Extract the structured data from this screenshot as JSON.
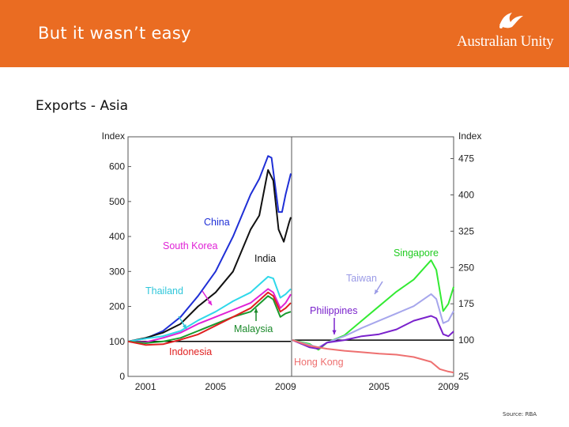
{
  "slide": {
    "title": "But it wasn’t easy",
    "subtitle": "Exports - Asia",
    "source": "Source: RBA",
    "logo_text": "Australian Unity",
    "brand_color": "#ea6c22"
  },
  "chart_data": [
    {
      "type": "line",
      "panel": "left",
      "axis_label": "Index",
      "yticks": [
        0,
        100,
        200,
        300,
        400,
        500,
        600
      ],
      "ylim": [
        0,
        685
      ],
      "xlim": [
        2000.0,
        2009.3
      ],
      "xticks": [
        2001,
        2005,
        2009
      ],
      "reference_line": 100,
      "grid": false,
      "series": [
        {
          "name": "China",
          "color": "#1f2fd6",
          "x": [
            2000.0,
            2001,
            2002,
            2003,
            2004,
            2005,
            2006,
            2007,
            2007.5,
            2008,
            2008.2,
            2008.6,
            2008.8,
            2009,
            2009.3
          ],
          "y": [
            100,
            108,
            130,
            170,
            230,
            300,
            400,
            520,
            565,
            630,
            625,
            470,
            470,
            520,
            580
          ]
        },
        {
          "name": "India",
          "color": "#111111",
          "x": [
            2000.0,
            2001,
            2002,
            2003,
            2004,
            2005,
            2006,
            2007,
            2007.5,
            2008,
            2008.3,
            2008.6,
            2008.9,
            2009.2,
            2009.3
          ],
          "y": [
            100,
            110,
            125,
            150,
            200,
            240,
            300,
            420,
            460,
            590,
            560,
            420,
            385,
            440,
            455
          ]
        },
        {
          "name": "South Korea",
          "color": "#e022d6",
          "x": [
            2000.0,
            2001,
            2002,
            2003,
            2004,
            2005,
            2006,
            2007,
            2008,
            2008.3,
            2008.7,
            2009,
            2009.3
          ],
          "y": [
            100,
            98,
            110,
            125,
            150,
            170,
            190,
            210,
            250,
            240,
            195,
            210,
            235
          ]
        },
        {
          "name": "Thailand",
          "color": "#2fd8ea",
          "x": [
            2000.0,
            2001,
            2002,
            2003,
            2004,
            2005,
            2006,
            2007,
            2008,
            2008.3,
            2008.7,
            2009,
            2009.3
          ],
          "y": [
            100,
            108,
            115,
            130,
            160,
            185,
            215,
            240,
            285,
            280,
            225,
            235,
            250
          ]
        },
        {
          "name": "Malaysia",
          "color": "#1a9a2e",
          "x": [
            2000.0,
            2001,
            2002,
            2003,
            2004,
            2005,
            2006,
            2007,
            2008,
            2008.3,
            2008.7,
            2009,
            2009.3
          ],
          "y": [
            100,
            95,
            100,
            110,
            130,
            150,
            170,
            185,
            230,
            220,
            170,
            180,
            185
          ]
        },
        {
          "name": "Indonesia",
          "color": "#e02020",
          "x": [
            2000.0,
            2001,
            2002,
            2003,
            2004,
            2005,
            2006,
            2007,
            2008,
            2008.3,
            2008.7,
            2009,
            2009.3
          ],
          "y": [
            100,
            90,
            92,
            105,
            120,
            145,
            170,
            195,
            240,
            230,
            185,
            195,
            210
          ]
        }
      ]
    },
    {
      "type": "line",
      "panel": "right",
      "axis_label": "Index",
      "yticks": [
        25,
        100,
        175,
        250,
        325,
        400,
        475
      ],
      "ylim": [
        25,
        520
      ],
      "xlim": [
        2000.0,
        2009.3
      ],
      "xticks": [
        2005,
        2009
      ],
      "reference_line": 100,
      "grid": false,
      "series": [
        {
          "name": "Singapore",
          "color": "#33ea33",
          "x": [
            2000.0,
            2001,
            2001.5,
            2002,
            2003,
            2004,
            2005,
            2006,
            2007,
            2008,
            2008.3,
            2008.7,
            2009,
            2009.3
          ],
          "y": [
            100,
            92,
            80,
            95,
            110,
            140,
            170,
            200,
            225,
            265,
            245,
            160,
            175,
            210
          ]
        },
        {
          "name": "Taiwan",
          "color": "#a6a6ec",
          "x": [
            2000.0,
            2001,
            2001.5,
            2002,
            2003,
            2004,
            2005,
            2006,
            2007,
            2008,
            2008.3,
            2008.7,
            2009,
            2009.3
          ],
          "y": [
            100,
            90,
            85,
            95,
            108,
            125,
            140,
            155,
            170,
            195,
            185,
            135,
            140,
            160
          ]
        },
        {
          "name": "Philippines",
          "color": "#7a22cc",
          "x": [
            2000.0,
            2001,
            2001.5,
            2002,
            2003,
            2004,
            2005,
            2006,
            2007,
            2008,
            2008.3,
            2008.7,
            2009,
            2009.3
          ],
          "y": [
            100,
            85,
            82,
            95,
            100,
            108,
            112,
            122,
            140,
            150,
            145,
            112,
            108,
            118
          ]
        },
        {
          "name": "Hong Kong",
          "color": "#ee7070",
          "x": [
            2000.0,
            2001,
            2002,
            2003,
            2004,
            2005,
            2006,
            2007,
            2008,
            2008.5,
            2009,
            2009.3
          ],
          "y": [
            100,
            88,
            82,
            78,
            75,
            72,
            70,
            65,
            55,
            40,
            35,
            33
          ]
        }
      ]
    }
  ]
}
